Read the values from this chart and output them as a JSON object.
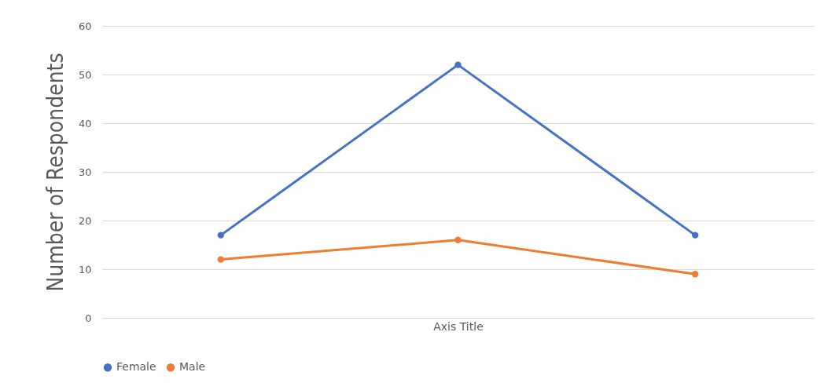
{
  "chart_data": {
    "type": "line",
    "xlabel": "Axis Title",
    "ylabel": "Number of Respondents",
    "categories": [
      null,
      null,
      null
    ],
    "series": [
      {
        "name": "Female",
        "color": "#4472c4",
        "values": [
          17,
          52,
          17
        ]
      },
      {
        "name": "Male",
        "color": "#ed7d31",
        "values": [
          12,
          16,
          9
        ]
      }
    ],
    "ylim": [
      0,
      60
    ],
    "yticks": [
      0,
      10,
      20,
      30,
      40,
      50,
      60
    ],
    "grid": "y",
    "legend": "bottom",
    "marker": "circle",
    "line_style": "solid"
  }
}
